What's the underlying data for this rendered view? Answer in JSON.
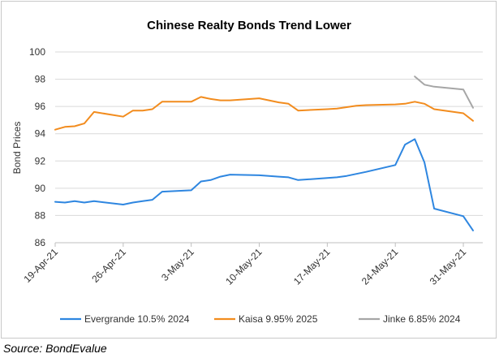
{
  "chart_data": {
    "type": "line",
    "title": "Chinese Realty Bonds Trend Lower",
    "xlabel": "",
    "ylabel": "Bond Prices",
    "ylim": [
      86,
      100
    ],
    "yticks": [
      86,
      88,
      90,
      92,
      94,
      96,
      98,
      100
    ],
    "xlim": [
      "2021-04-19",
      "2021-06-02"
    ],
    "xticks": [
      "19-Apr-21",
      "26-Apr-21",
      "3-May-21",
      "10-May-21",
      "17-May-21",
      "24-May-21",
      "31-May-21"
    ],
    "grid": "horizontal",
    "legend_position": "bottom",
    "series": [
      {
        "name": "Evergrande 10.5% 2024",
        "color": "#2e86e0",
        "points": [
          [
            "2021-04-19",
            89.0
          ],
          [
            "2021-04-20",
            88.95
          ],
          [
            "2021-04-21",
            89.05
          ],
          [
            "2021-04-22",
            88.95
          ],
          [
            "2021-04-23",
            89.05
          ],
          [
            "2021-04-26",
            88.8
          ],
          [
            "2021-04-27",
            88.95
          ],
          [
            "2021-04-28",
            89.05
          ],
          [
            "2021-04-29",
            89.15
          ],
          [
            "2021-04-30",
            89.75
          ],
          [
            "2021-05-03",
            89.85
          ],
          [
            "2021-05-04",
            90.5
          ],
          [
            "2021-05-05",
            90.6
          ],
          [
            "2021-05-06",
            90.85
          ],
          [
            "2021-05-07",
            91.0
          ],
          [
            "2021-05-10",
            90.95
          ],
          [
            "2021-05-12",
            90.85
          ],
          [
            "2021-05-13",
            90.8
          ],
          [
            "2021-05-14",
            90.6
          ],
          [
            "2021-05-17",
            90.75
          ],
          [
            "2021-05-18",
            90.8
          ],
          [
            "2021-05-19",
            90.9
          ],
          [
            "2021-05-20",
            91.05
          ],
          [
            "2021-05-21",
            91.2
          ],
          [
            "2021-05-24",
            91.7
          ],
          [
            "2021-05-25",
            93.2
          ],
          [
            "2021-05-26",
            93.6
          ],
          [
            "2021-05-27",
            91.9
          ],
          [
            "2021-05-28",
            88.5
          ],
          [
            "2021-05-31",
            87.95
          ],
          [
            "2021-06-01",
            86.9
          ]
        ]
      },
      {
        "name": "Kaisa 9.95% 2025",
        "color": "#f28c1e",
        "points": [
          [
            "2021-04-19",
            94.3
          ],
          [
            "2021-04-20",
            94.5
          ],
          [
            "2021-04-21",
            94.55
          ],
          [
            "2021-04-22",
            94.75
          ],
          [
            "2021-04-23",
            95.6
          ],
          [
            "2021-04-26",
            95.25
          ],
          [
            "2021-04-27",
            95.7
          ],
          [
            "2021-04-28",
            95.7
          ],
          [
            "2021-04-29",
            95.8
          ],
          [
            "2021-04-30",
            96.35
          ],
          [
            "2021-05-03",
            96.35
          ],
          [
            "2021-05-04",
            96.7
          ],
          [
            "2021-05-05",
            96.55
          ],
          [
            "2021-05-06",
            96.45
          ],
          [
            "2021-05-07",
            96.45
          ],
          [
            "2021-05-10",
            96.6
          ],
          [
            "2021-05-12",
            96.3
          ],
          [
            "2021-05-13",
            96.2
          ],
          [
            "2021-05-14",
            95.7
          ],
          [
            "2021-05-17",
            95.8
          ],
          [
            "2021-05-18",
            95.85
          ],
          [
            "2021-05-19",
            95.95
          ],
          [
            "2021-05-20",
            96.05
          ],
          [
            "2021-05-21",
            96.1
          ],
          [
            "2021-05-24",
            96.15
          ],
          [
            "2021-05-25",
            96.2
          ],
          [
            "2021-05-26",
            96.35
          ],
          [
            "2021-05-27",
            96.2
          ],
          [
            "2021-05-28",
            95.8
          ],
          [
            "2021-05-31",
            95.5
          ],
          [
            "2021-06-01",
            94.95
          ]
        ]
      },
      {
        "name": "Jinke 6.85% 2024",
        "color": "#a6a6a6",
        "points": [
          [
            "2021-05-26",
            98.2
          ],
          [
            "2021-05-27",
            97.6
          ],
          [
            "2021-05-28",
            97.45
          ],
          [
            "2021-05-31",
            97.25
          ],
          [
            "2021-06-01",
            95.9
          ]
        ]
      }
    ]
  },
  "source": "Source: BondEvalue"
}
